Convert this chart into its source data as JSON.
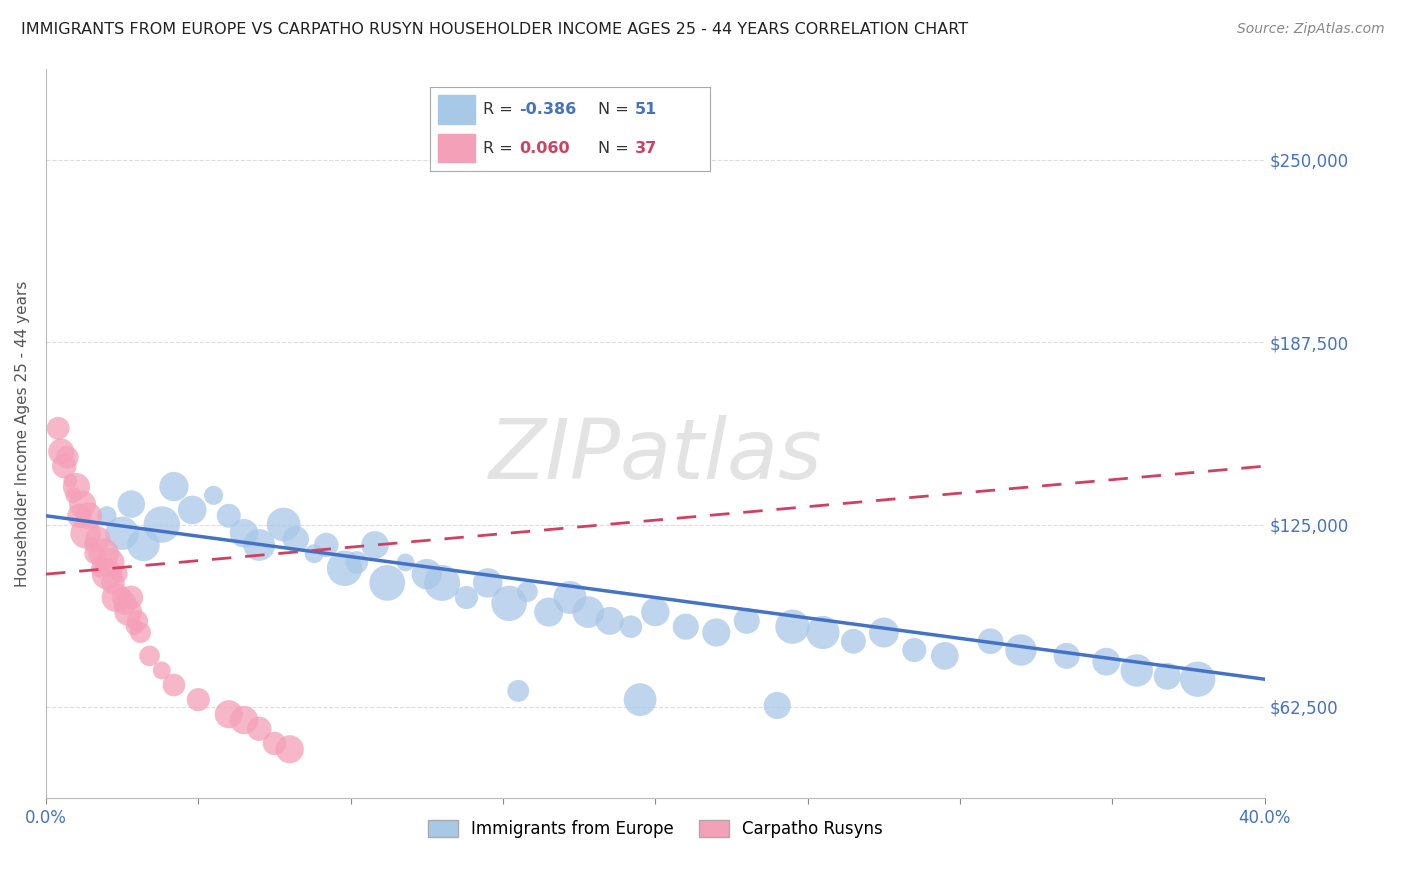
{
  "title": "IMMIGRANTS FROM EUROPE VS CARPATHO RUSYN HOUSEHOLDER INCOME AGES 25 - 44 YEARS CORRELATION CHART",
  "source": "Source: ZipAtlas.com",
  "ylabel": "Householder Income Ages 25 - 44 years",
  "xlim": [
    0.0,
    0.4
  ],
  "ylim": [
    31250,
    281250
  ],
  "yticks": [
    62500,
    125000,
    187500,
    250000
  ],
  "ytick_labels": [
    "$62,500",
    "$125,000",
    "$187,500",
    "$250,000"
  ],
  "xticks": [
    0.0,
    0.05,
    0.1,
    0.15,
    0.2,
    0.25,
    0.3,
    0.35,
    0.4
  ],
  "xtick_labels": [
    "0.0%",
    "",
    "",
    "",
    "",
    "",
    "",
    "",
    "40.0%"
  ],
  "blue_R": -0.386,
  "blue_N": 51,
  "pink_R": 0.06,
  "pink_N": 37,
  "blue_color": "#a8c8e8",
  "blue_line_color": "#4472c4",
  "pink_color": "#f4a0b8",
  "pink_line_color": "#d04060",
  "background_color": "#ffffff",
  "watermark": "ZIPatlas",
  "legend_label_blue": "Immigrants from Europe",
  "legend_label_pink": "Carpatho Rusyns",
  "blue_scatter_x": [
    0.02,
    0.025,
    0.028,
    0.032,
    0.038,
    0.042,
    0.048,
    0.055,
    0.06,
    0.065,
    0.07,
    0.078,
    0.082,
    0.088,
    0.092,
    0.098,
    0.102,
    0.108,
    0.112,
    0.118,
    0.125,
    0.13,
    0.138,
    0.145,
    0.152,
    0.158,
    0.165,
    0.172,
    0.178,
    0.185,
    0.192,
    0.2,
    0.21,
    0.22,
    0.23,
    0.245,
    0.255,
    0.265,
    0.275,
    0.285,
    0.295,
    0.31,
    0.32,
    0.335,
    0.348,
    0.358,
    0.368,
    0.378,
    0.155,
    0.195,
    0.24
  ],
  "blue_scatter_y": [
    128000,
    122000,
    132000,
    118000,
    125000,
    138000,
    130000,
    135000,
    128000,
    122000,
    118000,
    125000,
    120000,
    115000,
    118000,
    110000,
    112000,
    118000,
    105000,
    112000,
    108000,
    105000,
    100000,
    105000,
    98000,
    102000,
    95000,
    100000,
    95000,
    92000,
    90000,
    95000,
    90000,
    88000,
    92000,
    90000,
    88000,
    85000,
    88000,
    82000,
    80000,
    85000,
    82000,
    80000,
    78000,
    75000,
    73000,
    72000,
    68000,
    65000,
    63000
  ],
  "pink_scatter_x": [
    0.004,
    0.005,
    0.006,
    0.007,
    0.008,
    0.009,
    0.01,
    0.011,
    0.012,
    0.013,
    0.014,
    0.015,
    0.016,
    0.017,
    0.018,
    0.019,
    0.02,
    0.021,
    0.022,
    0.023,
    0.024,
    0.025,
    0.026,
    0.027,
    0.028,
    0.029,
    0.03,
    0.031,
    0.034,
    0.038,
    0.042,
    0.05,
    0.06,
    0.065,
    0.07,
    0.075,
    0.08
  ],
  "pink_scatter_y": [
    158000,
    150000,
    145000,
    148000,
    140000,
    135000,
    138000,
    128000,
    132000,
    122000,
    128000,
    118000,
    115000,
    120000,
    110000,
    115000,
    108000,
    112000,
    105000,
    100000,
    108000,
    100000,
    98000,
    95000,
    100000,
    90000,
    92000,
    88000,
    80000,
    75000,
    70000,
    65000,
    60000,
    58000,
    55000,
    50000,
    48000
  ]
}
